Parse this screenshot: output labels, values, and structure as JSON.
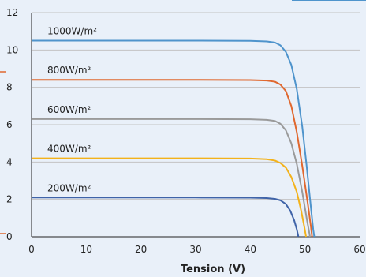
{
  "chart_data": {
    "type": "line",
    "xlabel": "Tension (V)",
    "xlim": [
      0,
      60
    ],
    "ylim": [
      0,
      12
    ],
    "x_ticks": [
      0,
      10,
      20,
      30,
      40,
      50,
      60
    ],
    "y_ticks": [
      0,
      2,
      4,
      6,
      8,
      10,
      12
    ],
    "grid": "horizontal",
    "series": [
      {
        "name": "1000W/m²",
        "color": "#4f94cc",
        "points": [
          [
            0,
            10.5
          ],
          [
            10,
            10.5
          ],
          [
            20,
            10.5
          ],
          [
            30,
            10.5
          ],
          [
            40,
            10.49
          ],
          [
            43,
            10.46
          ],
          [
            44.5,
            10.4
          ],
          [
            45.5,
            10.25
          ],
          [
            46.5,
            9.9
          ],
          [
            47.5,
            9.2
          ],
          [
            48.5,
            7.9
          ],
          [
            49.5,
            5.9
          ],
          [
            50.3,
            3.8
          ],
          [
            51.0,
            1.8
          ],
          [
            51.5,
            0.4
          ],
          [
            51.7,
            0
          ]
        ]
      },
      {
        "name": "800W/m²",
        "color": "#e0682f",
        "points": [
          [
            0,
            8.4
          ],
          [
            10,
            8.4
          ],
          [
            20,
            8.4
          ],
          [
            30,
            8.4
          ],
          [
            40,
            8.39
          ],
          [
            43,
            8.36
          ],
          [
            44.5,
            8.3
          ],
          [
            45.5,
            8.15
          ],
          [
            46.5,
            7.8
          ],
          [
            47.5,
            7.0
          ],
          [
            48.5,
            5.6
          ],
          [
            49.5,
            3.8
          ],
          [
            50.5,
            1.8
          ],
          [
            51.1,
            0.5
          ],
          [
            51.3,
            0
          ]
        ]
      },
      {
        "name": "600W/m²",
        "color": "#9a9a9a",
        "points": [
          [
            0,
            6.3
          ],
          [
            10,
            6.3
          ],
          [
            20,
            6.3
          ],
          [
            30,
            6.3
          ],
          [
            40,
            6.29
          ],
          [
            43,
            6.26
          ],
          [
            44.5,
            6.2
          ],
          [
            45.5,
            6.05
          ],
          [
            46.5,
            5.7
          ],
          [
            47.5,
            5.0
          ],
          [
            48.5,
            3.9
          ],
          [
            49.5,
            2.4
          ],
          [
            50.3,
            1.0
          ],
          [
            50.8,
            0.2
          ],
          [
            50.9,
            0
          ]
        ]
      },
      {
        "name": "400W/m²",
        "color": "#f3b21b",
        "points": [
          [
            0,
            4.2
          ],
          [
            10,
            4.2
          ],
          [
            20,
            4.2
          ],
          [
            30,
            4.2
          ],
          [
            40,
            4.19
          ],
          [
            43,
            4.15
          ],
          [
            44.5,
            4.08
          ],
          [
            45.5,
            3.95
          ],
          [
            46.5,
            3.7
          ],
          [
            47.5,
            3.2
          ],
          [
            48.5,
            2.4
          ],
          [
            49.3,
            1.4
          ],
          [
            49.9,
            0.5
          ],
          [
            50.2,
            0
          ]
        ]
      },
      {
        "name": "200W/m²",
        "color": "#3f63a8",
        "points": [
          [
            0,
            2.1
          ],
          [
            10,
            2.1
          ],
          [
            20,
            2.1
          ],
          [
            30,
            2.1
          ],
          [
            40,
            2.09
          ],
          [
            43,
            2.07
          ],
          [
            44.5,
            2.03
          ],
          [
            45.5,
            1.95
          ],
          [
            46.5,
            1.75
          ],
          [
            47.3,
            1.4
          ],
          [
            48.0,
            0.9
          ],
          [
            48.5,
            0.4
          ],
          [
            48.8,
            0
          ]
        ]
      }
    ]
  }
}
